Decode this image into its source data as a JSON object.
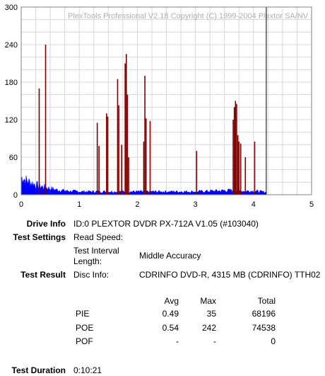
{
  "chart_data": {
    "type": "bar",
    "watermark": "PlexTools Professional V2.18 Copyright (C) 1999-2004 Plextor SA/NV",
    "xlim": [
      0,
      5
    ],
    "ylim": [
      0,
      300
    ],
    "x_ticks": [
      "0",
      "1",
      "2",
      "3",
      "4",
      "5"
    ],
    "y_ticks": [
      "0",
      "60",
      "120",
      "180",
      "240",
      "300"
    ],
    "grid": true,
    "end_marker_x": 4.22,
    "series": [
      {
        "color": "#0000ff",
        "kind": "area",
        "points": [
          [
            0,
            25
          ],
          [
            0.03,
            30
          ],
          [
            0.06,
            24
          ],
          [
            0.1,
            22
          ],
          [
            0.15,
            20
          ],
          [
            0.2,
            18
          ],
          [
            0.25,
            16
          ],
          [
            0.3,
            14
          ],
          [
            0.35,
            13
          ],
          [
            0.4,
            12
          ],
          [
            0.45,
            11
          ],
          [
            0.5,
            10
          ],
          [
            0.55,
            9
          ],
          [
            0.6,
            8
          ],
          [
            0.7,
            7
          ],
          [
            0.8,
            6
          ],
          [
            1.0,
            5
          ],
          [
            1.5,
            5
          ],
          [
            2.0,
            5
          ],
          [
            2.5,
            5
          ],
          [
            3.0,
            5
          ],
          [
            3.3,
            6
          ],
          [
            3.6,
            7
          ],
          [
            3.8,
            6
          ],
          [
            4.0,
            6
          ],
          [
            4.22,
            4
          ]
        ]
      },
      {
        "color": "#800000",
        "kind": "spikes",
        "points": [
          [
            0.31,
            170
          ],
          [
            0.42,
            240
          ],
          [
            1.31,
            115
          ],
          [
            1.34,
            78
          ],
          [
            1.47,
            130
          ],
          [
            1.49,
            125
          ],
          [
            1.66,
            185
          ],
          [
            1.68,
            143
          ],
          [
            1.73,
            80
          ],
          [
            1.79,
            210
          ],
          [
            1.81,
            225
          ],
          [
            1.83,
            160
          ],
          [
            1.85,
            60
          ],
          [
            2.11,
            85
          ],
          [
            2.13,
            190
          ],
          [
            2.15,
            122
          ],
          [
            2.22,
            118
          ],
          [
            3.02,
            70
          ],
          [
            3.65,
            120
          ],
          [
            3.67,
            140
          ],
          [
            3.69,
            150
          ],
          [
            3.71,
            145
          ],
          [
            3.73,
            95
          ],
          [
            3.75,
            85
          ],
          [
            3.78,
            82
          ],
          [
            3.86,
            60
          ],
          [
            4.02,
            85
          ]
        ]
      }
    ]
  },
  "info": {
    "drive_info_label": "Drive Info",
    "drive_info_value": "ID:0 PLEXTOR DVDR PX-712A V1.05 (#103040)",
    "test_settings_label": "Test Settings",
    "read_speed_label": "Read Speed:",
    "interval_label_line1": "Test Interval",
    "interval_label_line2": "Length:",
    "interval_value": "Middle Accuracy",
    "test_result_label": "Test Result",
    "disc_info_label": "Disc Info:",
    "disc_info_value": "CDRINFO DVD-R, 4315 MB (CDRINFO) TTH02",
    "test_duration_label": "Test Duration",
    "test_duration_value": "0:10:21"
  },
  "results": {
    "headers": [
      "Avg",
      "Max",
      "Total"
    ],
    "rows": [
      {
        "name": "PIE",
        "avg": "0.49",
        "max": "35",
        "total": "68196"
      },
      {
        "name": "POE",
        "avg": "0.54",
        "max": "242",
        "total": "74538"
      },
      {
        "name": "POF",
        "avg": "-",
        "max": "-",
        "total": "0"
      }
    ]
  }
}
